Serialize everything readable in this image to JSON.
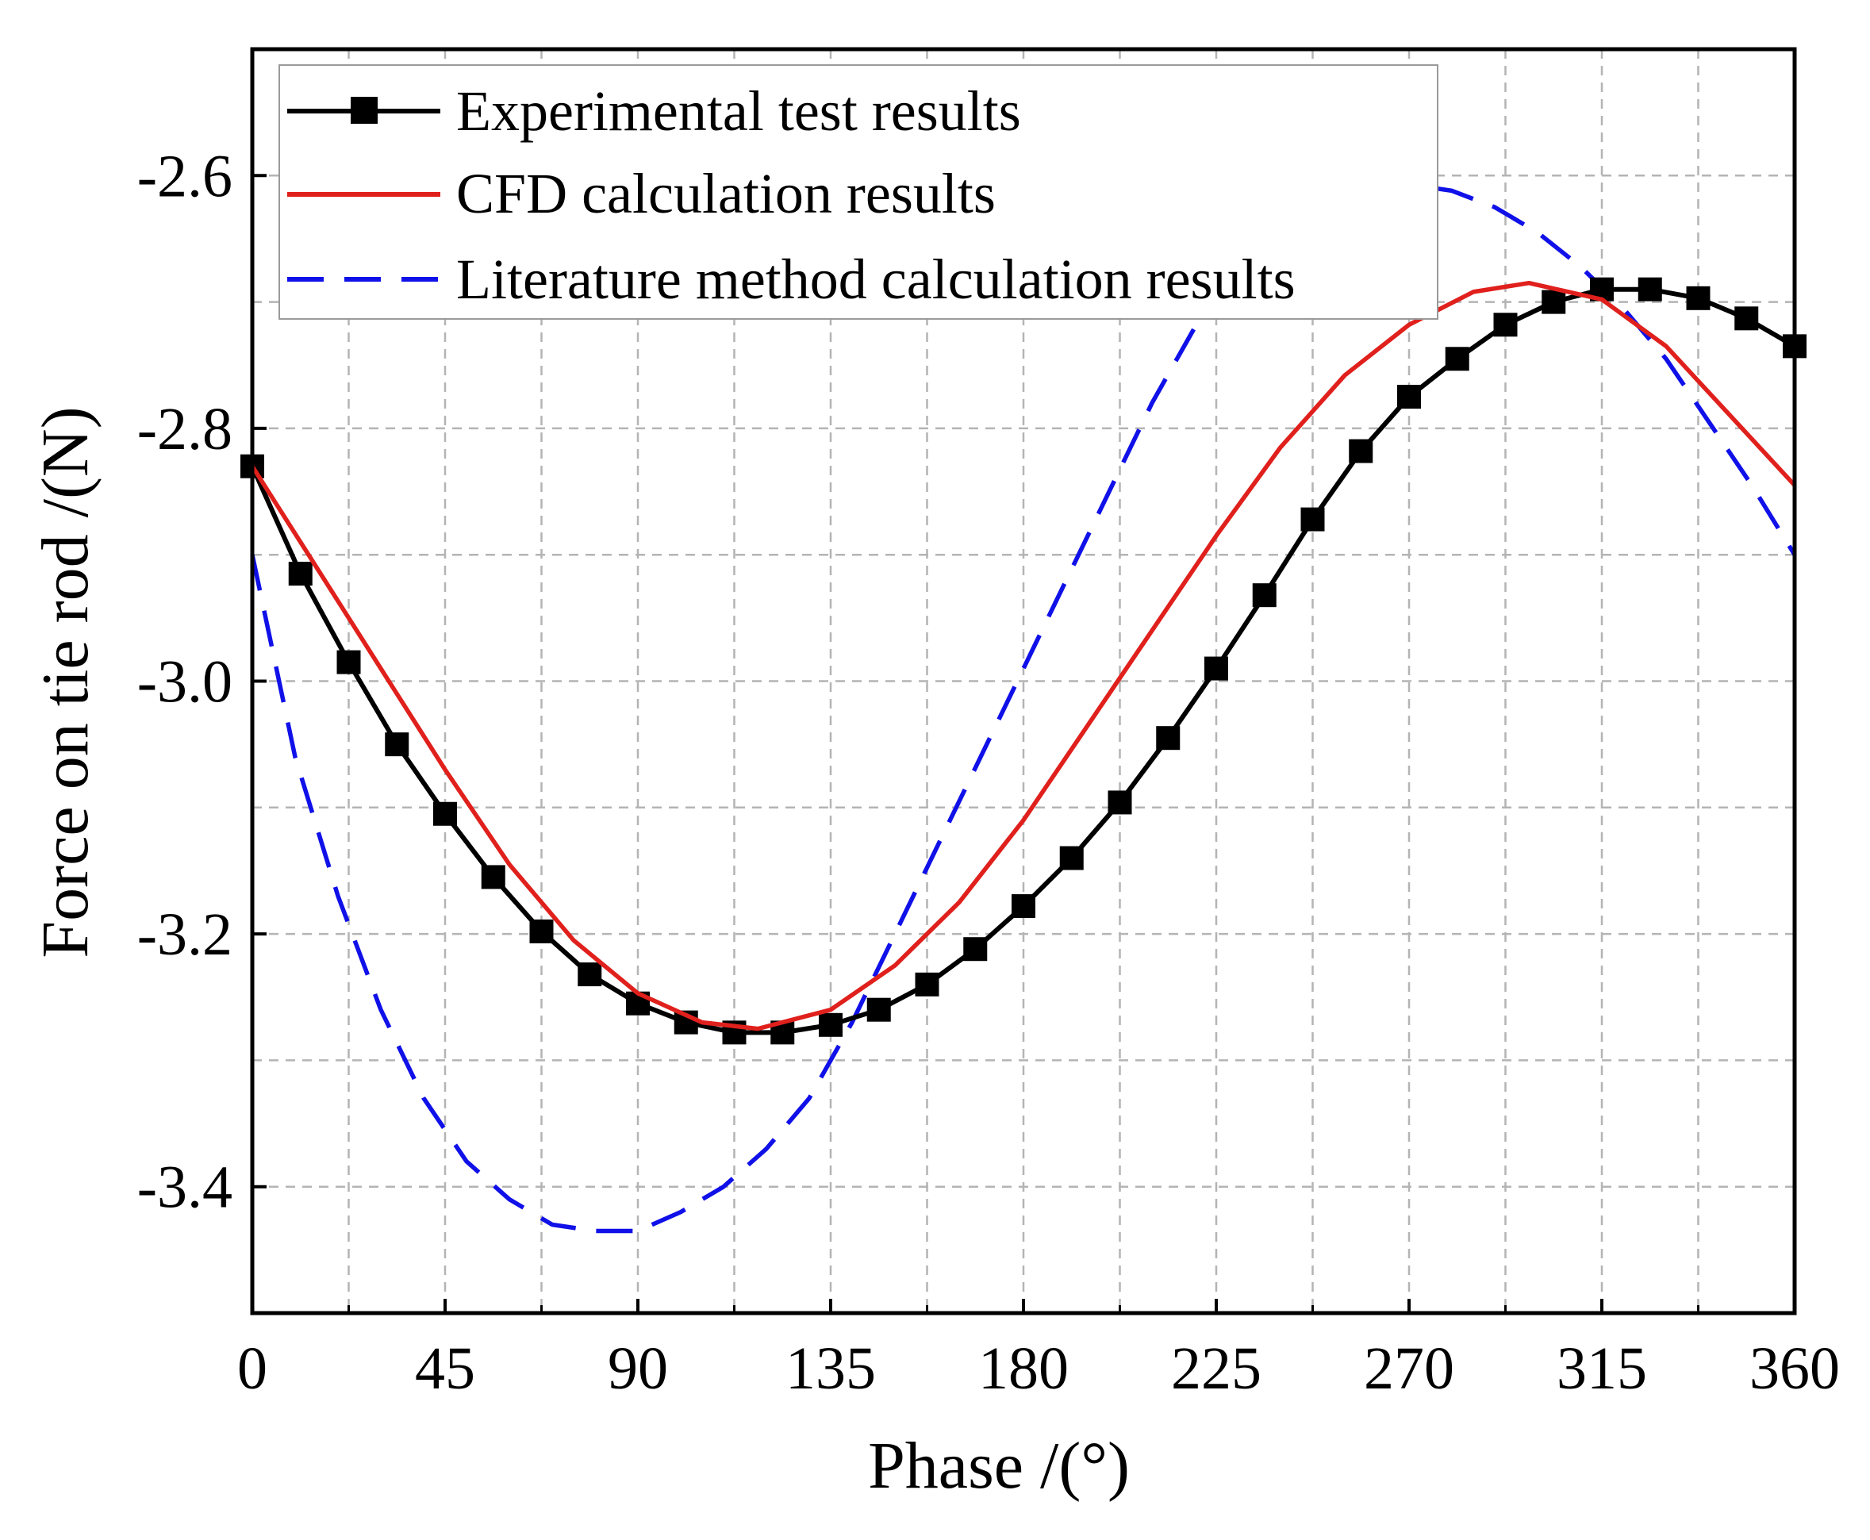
{
  "chart_data": {
    "type": "line",
    "xlabel": "Phase /(°)",
    "ylabel": "Force on tie rod /(N)",
    "xlim": [
      0,
      360
    ],
    "ylim": [
      -3.5,
      -2.5
    ],
    "xticks": [
      0,
      45,
      90,
      135,
      180,
      225,
      270,
      315,
      360
    ],
    "yticks": [
      -3.4,
      -3.2,
      -3.0,
      -2.8,
      -2.6
    ],
    "xtick_labels": [
      "0",
      "45",
      "90",
      "135",
      "180",
      "225",
      "270",
      "315",
      "360"
    ],
    "ytick_labels": [
      "-3.4",
      "-3.2",
      "-3.0",
      "-2.8",
      "-2.6"
    ],
    "grid": true,
    "legend_position": "top-left",
    "series": [
      {
        "name": "Experimental test results",
        "color": "#000000",
        "style": "solid-square-markers",
        "x": [
          0,
          11.25,
          22.5,
          33.75,
          45,
          56.25,
          67.5,
          78.75,
          90,
          101.25,
          112.5,
          123.75,
          135,
          146.25,
          157.5,
          168.75,
          180,
          191.25,
          202.5,
          213.75,
          225,
          236.25,
          247.5,
          258.75,
          270,
          281.25,
          292.5,
          303.75,
          315,
          326.25,
          337.5,
          348.75,
          360
        ],
        "y": [
          -2.83,
          -2.915,
          -2.985,
          -3.05,
          -3.105,
          -3.155,
          -3.198,
          -3.232,
          -3.255,
          -3.27,
          -3.278,
          -3.278,
          -3.272,
          -3.26,
          -3.24,
          -3.212,
          -3.178,
          -3.14,
          -3.096,
          -3.045,
          -2.99,
          -2.932,
          -2.872,
          -2.818,
          -2.775,
          -2.745,
          -2.718,
          -2.7,
          -2.69,
          -2.69,
          -2.697,
          -2.713,
          -2.735
        ]
      },
      {
        "name": "CFD calculation results",
        "color": "#e0201c",
        "style": "solid",
        "x": [
          0,
          15,
          30,
          45,
          60,
          75,
          90,
          105,
          118,
          135,
          150,
          165,
          180,
          195,
          210,
          225,
          240,
          255,
          270,
          285,
          298,
          315,
          330,
          345,
          360
        ],
        "y": [
          -2.83,
          -2.91,
          -2.99,
          -3.07,
          -3.145,
          -3.205,
          -3.247,
          -3.27,
          -3.275,
          -3.26,
          -3.225,
          -3.175,
          -3.11,
          -3.035,
          -2.96,
          -2.885,
          -2.815,
          -2.758,
          -2.718,
          -2.692,
          -2.685,
          -2.698,
          -2.735,
          -2.79,
          -2.845
        ]
      },
      {
        "name": "Literature method calculation results",
        "color": "#1010e8",
        "style": "dashed",
        "x": [
          0,
          10,
          20,
          30,
          40,
          50,
          60,
          70,
          80,
          90,
          100,
          110,
          120,
          130,
          140,
          150,
          160,
          170,
          180,
          190,
          200,
          210,
          220,
          230,
          240,
          250,
          260,
          270,
          280,
          290,
          300,
          310,
          320,
          330,
          340,
          350,
          360
        ],
        "y": [
          -2.9,
          -3.06,
          -3.17,
          -3.26,
          -3.33,
          -3.38,
          -3.41,
          -3.43,
          -3.435,
          -3.435,
          -3.42,
          -3.4,
          -3.37,
          -3.33,
          -3.27,
          -3.2,
          -3.13,
          -3.06,
          -2.99,
          -2.92,
          -2.85,
          -2.78,
          -2.72,
          -2.67,
          -2.635,
          -2.615,
          -2.607,
          -2.607,
          -2.612,
          -2.625,
          -2.645,
          -2.672,
          -2.705,
          -2.745,
          -2.795,
          -2.845,
          -2.9
        ]
      }
    ]
  }
}
